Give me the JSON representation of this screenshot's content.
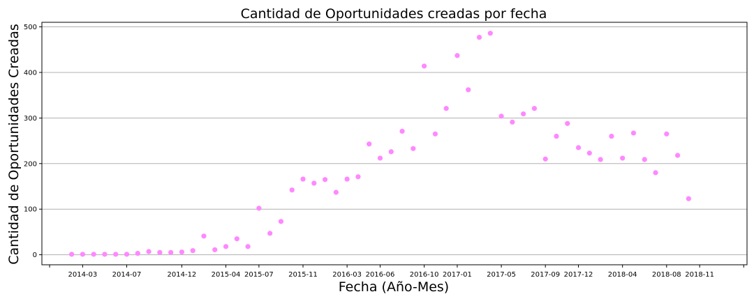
{
  "chart_data": {
    "type": "scatter",
    "title": "Cantidad de Oportunidades creadas por fecha",
    "xlabel": "Fecha (Año-Mes)",
    "ylabel": "Cantidad de Oportunidades Creadas",
    "ylim": [
      -22,
      510
    ],
    "y_ticks": [
      0,
      100,
      200,
      300,
      400,
      500
    ],
    "grid": "horizontal",
    "marker_color": "#ff88ff",
    "x_tick_labels": [
      {
        "label": "2014-03",
        "month_index": 1
      },
      {
        "label": "2014-07",
        "month_index": 5
      },
      {
        "label": "2014-12",
        "month_index": 10
      },
      {
        "label": "2015-04",
        "month_index": 14
      },
      {
        "label": "2015-07",
        "month_index": 17
      },
      {
        "label": "2015-11",
        "month_index": 21
      },
      {
        "label": "2016-03",
        "month_index": 25
      },
      {
        "label": "2016-06",
        "month_index": 28
      },
      {
        "label": "2016-10",
        "month_index": 32
      },
      {
        "label": "2017-01",
        "month_index": 35
      },
      {
        "label": "2017-05",
        "month_index": 39
      },
      {
        "label": "2017-09",
        "month_index": 43
      },
      {
        "label": "2017-12",
        "month_index": 46
      },
      {
        "label": "2018-04",
        "month_index": 50
      },
      {
        "label": "2018-08",
        "month_index": 54
      },
      {
        "label": "2018-11",
        "month_index": 57
      }
    ],
    "x_range_month_index": [
      -2.7,
      61.3
    ],
    "series": [
      {
        "month_index": [
          0,
          1,
          2,
          3,
          4,
          5,
          6,
          7,
          8,
          9,
          10,
          11,
          12,
          13,
          14,
          15,
          16,
          17,
          18,
          19,
          20,
          21,
          22,
          23,
          24,
          25,
          26,
          27,
          28,
          29,
          30,
          31,
          32,
          33,
          34,
          35,
          36,
          37,
          38,
          39,
          40,
          41,
          42,
          43,
          44,
          45,
          46,
          47,
          48,
          49,
          50,
          51,
          52,
          53,
          54,
          55,
          56,
          57,
          58
        ],
        "values": [
          1,
          1,
          1,
          1,
          1,
          1,
          3,
          7,
          5,
          5,
          6,
          9,
          41,
          11,
          18,
          35,
          18,
          102,
          47,
          73,
          142,
          166,
          157,
          165,
          137,
          166,
          171,
          243,
          212,
          226,
          271,
          233,
          414,
          265,
          321,
          437,
          362,
          477,
          486,
          304,
          291,
          309,
          321,
          210,
          260,
          288,
          235,
          223,
          209,
          260,
          212,
          267,
          209,
          180,
          265,
          218,
          123,
          null,
          null
        ]
      }
    ]
  }
}
